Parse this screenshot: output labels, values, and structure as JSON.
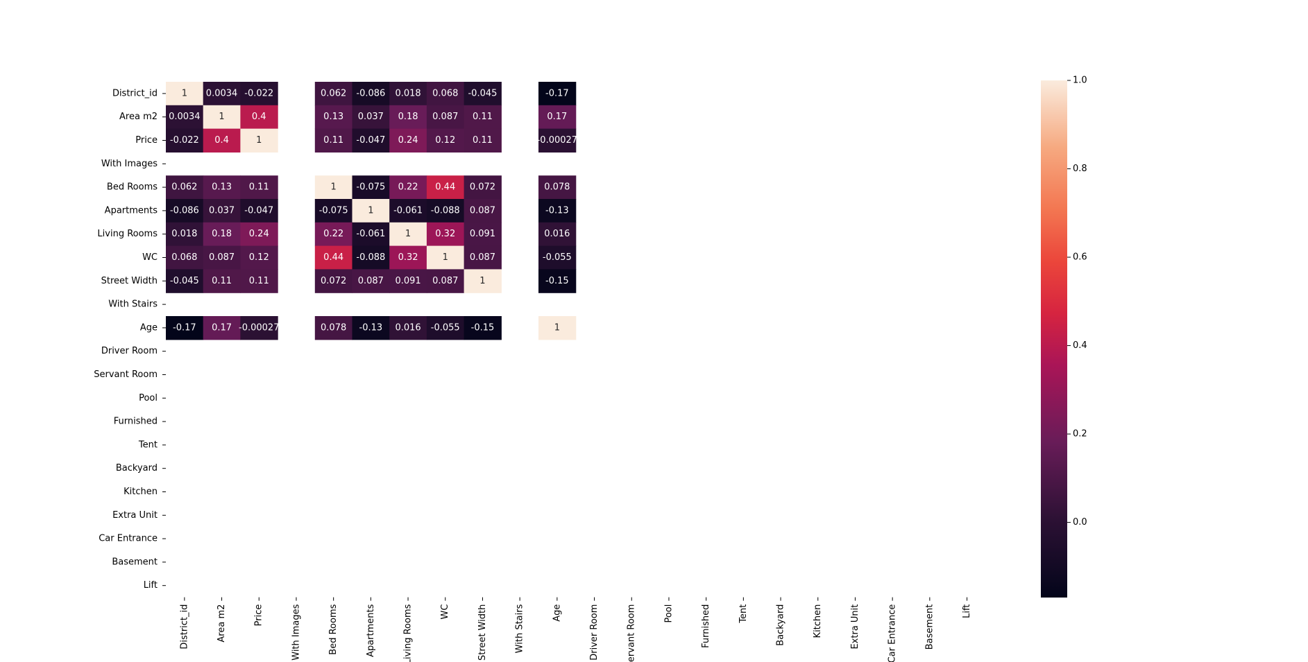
{
  "chart_data": {
    "type": "heatmap",
    "title": "",
    "xlabel": "",
    "ylabel": "",
    "row_labels": [
      "District_id",
      "Area m2",
      "Price",
      "With Images",
      "Bed Rooms",
      "Apartments",
      "Living Rooms",
      "WC",
      "Street Width",
      "With Stairs",
      "Age",
      "Driver Room",
      "Servant Room",
      "Pool",
      "Furnished",
      "Tent",
      "Backyard",
      "Kitchen",
      "Extra Unit",
      "Car Entrance",
      "Basement",
      "Lift"
    ],
    "col_labels": [
      "District_id",
      "Area m2",
      "Price",
      "With Images",
      "Bed Rooms",
      "Apartments",
      "Living Rooms",
      "WC",
      "Street Width",
      "With Stairs",
      "Age",
      "Driver Room",
      "Servant Room",
      "Pool",
      "Furnished",
      "Tent",
      "Backyard",
      "Kitchen",
      "Extra Unit",
      "Car Entrance",
      "Basement",
      "Lift"
    ],
    "values": [
      [
        1,
        0.0034,
        -0.022,
        null,
        0.062,
        -0.086,
        0.018,
        0.068,
        -0.045,
        null,
        -0.17,
        null,
        null,
        null,
        null,
        null,
        null,
        null,
        null,
        null,
        null,
        null
      ],
      [
        0.0034,
        1,
        0.4,
        null,
        0.13,
        0.037,
        0.18,
        0.087,
        0.11,
        null,
        0.17,
        null,
        null,
        null,
        null,
        null,
        null,
        null,
        null,
        null,
        null,
        null
      ],
      [
        -0.022,
        0.4,
        1,
        null,
        0.11,
        -0.047,
        0.24,
        0.12,
        0.11,
        null,
        -0.00027,
        null,
        null,
        null,
        null,
        null,
        null,
        null,
        null,
        null,
        null,
        null
      ],
      [
        null,
        null,
        null,
        null,
        null,
        null,
        null,
        null,
        null,
        null,
        null,
        null,
        null,
        null,
        null,
        null,
        null,
        null,
        null,
        null,
        null,
        null
      ],
      [
        0.062,
        0.13,
        0.11,
        null,
        1,
        -0.075,
        0.22,
        0.44,
        0.072,
        null,
        0.078,
        null,
        null,
        null,
        null,
        null,
        null,
        null,
        null,
        null,
        null,
        null
      ],
      [
        -0.086,
        0.037,
        -0.047,
        null,
        -0.075,
        1,
        -0.061,
        -0.088,
        0.087,
        null,
        -0.13,
        null,
        null,
        null,
        null,
        null,
        null,
        null,
        null,
        null,
        null,
        null
      ],
      [
        0.018,
        0.18,
        0.24,
        null,
        0.22,
        -0.061,
        1,
        0.32,
        0.091,
        null,
        0.016,
        null,
        null,
        null,
        null,
        null,
        null,
        null,
        null,
        null,
        null,
        null
      ],
      [
        0.068,
        0.087,
        0.12,
        null,
        0.44,
        -0.088,
        0.32,
        1,
        0.087,
        null,
        -0.055,
        null,
        null,
        null,
        null,
        null,
        null,
        null,
        null,
        null,
        null,
        null
      ],
      [
        -0.045,
        0.11,
        0.11,
        null,
        0.072,
        0.087,
        0.091,
        0.087,
        1,
        null,
        -0.15,
        null,
        null,
        null,
        null,
        null,
        null,
        null,
        null,
        null,
        null,
        null
      ],
      [
        null,
        null,
        null,
        null,
        null,
        null,
        null,
        null,
        null,
        null,
        null,
        null,
        null,
        null,
        null,
        null,
        null,
        null,
        null,
        null,
        null,
        null
      ],
      [
        -0.17,
        0.17,
        -0.00027,
        null,
        0.078,
        -0.13,
        0.016,
        -0.055,
        -0.15,
        null,
        1,
        null,
        null,
        null,
        null,
        null,
        null,
        null,
        null,
        null,
        null,
        null
      ],
      [
        null,
        null,
        null,
        null,
        null,
        null,
        null,
        null,
        null,
        null,
        null,
        null,
        null,
        null,
        null,
        null,
        null,
        null,
        null,
        null,
        null,
        null
      ],
      [
        null,
        null,
        null,
        null,
        null,
        null,
        null,
        null,
        null,
        null,
        null,
        null,
        null,
        null,
        null,
        null,
        null,
        null,
        null,
        null,
        null,
        null
      ],
      [
        null,
        null,
        null,
        null,
        null,
        null,
        null,
        null,
        null,
        null,
        null,
        null,
        null,
        null,
        null,
        null,
        null,
        null,
        null,
        null,
        null,
        null
      ],
      [
        null,
        null,
        null,
        null,
        null,
        null,
        null,
        null,
        null,
        null,
        null,
        null,
        null,
        null,
        null,
        null,
        null,
        null,
        null,
        null,
        null,
        null
      ],
      [
        null,
        null,
        null,
        null,
        null,
        null,
        null,
        null,
        null,
        null,
        null,
        null,
        null,
        null,
        null,
        null,
        null,
        null,
        null,
        null,
        null,
        null
      ],
      [
        null,
        null,
        null,
        null,
        null,
        null,
        null,
        null,
        null,
        null,
        null,
        null,
        null,
        null,
        null,
        null,
        null,
        null,
        null,
        null,
        null,
        null
      ],
      [
        null,
        null,
        null,
        null,
        null,
        null,
        null,
        null,
        null,
        null,
        null,
        null,
        null,
        null,
        null,
        null,
        null,
        null,
        null,
        null,
        null,
        null
      ],
      [
        null,
        null,
        null,
        null,
        null,
        null,
        null,
        null,
        null,
        null,
        null,
        null,
        null,
        null,
        null,
        null,
        null,
        null,
        null,
        null,
        null,
        null
      ],
      [
        null,
        null,
        null,
        null,
        null,
        null,
        null,
        null,
        null,
        null,
        null,
        null,
        null,
        null,
        null,
        null,
        null,
        null,
        null,
        null,
        null,
        null
      ],
      [
        null,
        null,
        null,
        null,
        null,
        null,
        null,
        null,
        null,
        null,
        null,
        null,
        null,
        null,
        null,
        null,
        null,
        null,
        null,
        null,
        null,
        null
      ],
      [
        null,
        null,
        null,
        null,
        null,
        null,
        null,
        null,
        null,
        null,
        null,
        null,
        null,
        null,
        null,
        null,
        null,
        null,
        null,
        null,
        null,
        null
      ]
    ],
    "cell_labels": [
      [
        "1",
        "0.0034",
        "-0.022",
        "",
        "0.062",
        "-0.086",
        "0.018",
        "0.068",
        "-0.045",
        "",
        "-0.17"
      ],
      [
        "0.0034",
        "1",
        "0.4",
        "",
        "0.13",
        "0.037",
        "0.18",
        "0.087",
        "0.11",
        "",
        "0.17"
      ],
      [
        "-0.022",
        "0.4",
        "1",
        "",
        "0.11",
        "-0.047",
        "0.24",
        "0.12",
        "0.11",
        "",
        "-0.00027"
      ],
      [
        "",
        "",
        "",
        "",
        "",
        "",
        "",
        "",
        "",
        "",
        ""
      ],
      [
        "0.062",
        "0.13",
        "0.11",
        "",
        "1",
        "-0.075",
        "0.22",
        "0.44",
        "0.072",
        "",
        "0.078"
      ],
      [
        "-0.086",
        "0.037",
        "-0.047",
        "",
        "-0.075",
        "1",
        "-0.061",
        "-0.088",
        "0.087",
        "",
        "-0.13"
      ],
      [
        "0.018",
        "0.18",
        "0.24",
        "",
        "0.22",
        "-0.061",
        "1",
        "0.32",
        "0.091",
        "",
        "0.016"
      ],
      [
        "0.068",
        "0.087",
        "0.12",
        "",
        "0.44",
        "-0.088",
        "0.32",
        "1",
        "0.087",
        "",
        "-0.055"
      ],
      [
        "-0.045",
        "0.11",
        "0.11",
        "",
        "0.072",
        "0.087",
        "0.091",
        "0.087",
        "1",
        "",
        "-0.15"
      ],
      [
        "",
        "",
        "",
        "",
        "",
        "",
        "",
        "",
        "",
        "",
        ""
      ],
      [
        "-0.17",
        "0.17",
        "-0.00027",
        "",
        "0.078",
        "-0.13",
        "0.016",
        "-0.055",
        "-0.15",
        "",
        "1"
      ]
    ],
    "colormap": "rocket",
    "colorbar": {
      "min": -0.17,
      "max": 1.0,
      "ticks": [
        0.0,
        0.2,
        0.4,
        0.6,
        0.8,
        1.0
      ],
      "tick_labels": [
        "0.0",
        "0.2",
        "0.4",
        "0.6",
        "0.8",
        "1.0"
      ]
    },
    "grid": false,
    "legend": "colorbar-right"
  }
}
